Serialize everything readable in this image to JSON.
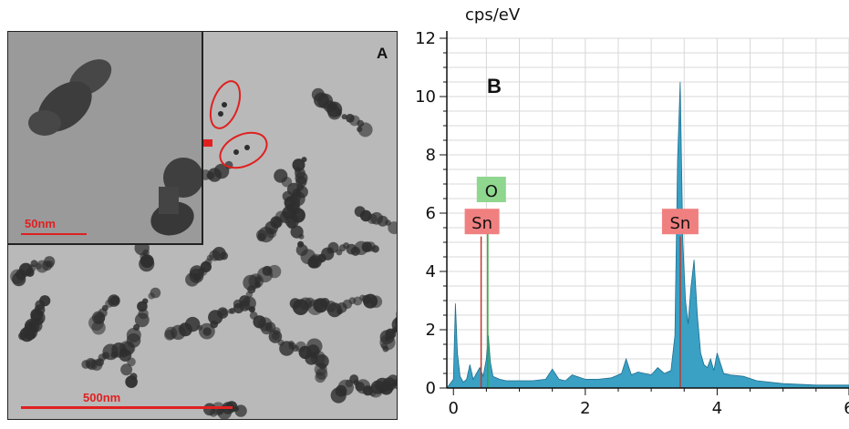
{
  "panel_a": {
    "letter": "A",
    "inset_scale_label": "50nm",
    "main_scale_label": "500nm",
    "colors": {
      "annotation": "#e02020",
      "background": "#b9b9b9",
      "particles": "#2e2e2e"
    }
  },
  "panel_b": {
    "letter": "B",
    "y_unit": "cps/eV",
    "colors": {
      "spectrum": "#3aa0c4",
      "spectrum_edge": "#1e6f8f",
      "sn_marker": "#c0392b",
      "o_marker": "#2eaa2e",
      "sn_box": "#f08080",
      "o_box": "#8fd68f"
    }
  },
  "chart_data": {
    "type": "area",
    "title": "",
    "xlabel": "",
    "ylabel": "cps/eV",
    "xlim": [
      -0.1,
      6
    ],
    "ylim": [
      0,
      12
    ],
    "x_ticks": [
      0,
      2,
      4,
      6
    ],
    "y_ticks": [
      0,
      2,
      4,
      6,
      8,
      10,
      12
    ],
    "grid": true,
    "series": [
      {
        "x": [
          -0.1,
          0.0,
          0.03,
          0.06,
          0.1,
          0.15,
          0.2,
          0.25,
          0.3,
          0.35,
          0.4,
          0.45,
          0.5,
          0.53,
          0.56,
          0.6,
          0.7,
          0.8,
          1.0,
          1.2,
          1.4,
          1.5,
          1.6,
          1.7,
          1.8,
          2.0,
          2.2,
          2.4,
          2.55,
          2.62,
          2.7,
          2.8,
          3.0,
          3.1,
          3.2,
          3.3,
          3.36,
          3.4,
          3.44,
          3.48,
          3.52,
          3.56,
          3.6,
          3.65,
          3.7,
          3.75,
          3.8,
          3.85,
          3.9,
          3.95,
          4.0,
          4.1,
          4.2,
          4.4,
          4.6,
          5.0,
          5.5,
          6.0
        ],
        "values": [
          0,
          0.3,
          2.9,
          1.2,
          0.4,
          0.2,
          0.3,
          0.8,
          0.3,
          0.5,
          0.7,
          0.4,
          1.0,
          1.8,
          0.9,
          0.4,
          0.3,
          0.25,
          0.25,
          0.25,
          0.3,
          0.65,
          0.3,
          0.25,
          0.45,
          0.3,
          0.3,
          0.35,
          0.5,
          1.0,
          0.45,
          0.55,
          0.45,
          0.7,
          0.5,
          0.6,
          1.8,
          7.8,
          10.5,
          5.0,
          3.0,
          2.2,
          3.4,
          4.4,
          2.5,
          1.2,
          0.8,
          0.7,
          1.0,
          0.6,
          1.2,
          0.5,
          0.45,
          0.4,
          0.25,
          0.15,
          0.1,
          0.1
        ]
      }
    ],
    "peaks": [
      {
        "element": "Sn",
        "x": 0.42
      },
      {
        "element": "O",
        "x": 0.52
      },
      {
        "element": "Sn",
        "x": 3.44
      }
    ]
  }
}
